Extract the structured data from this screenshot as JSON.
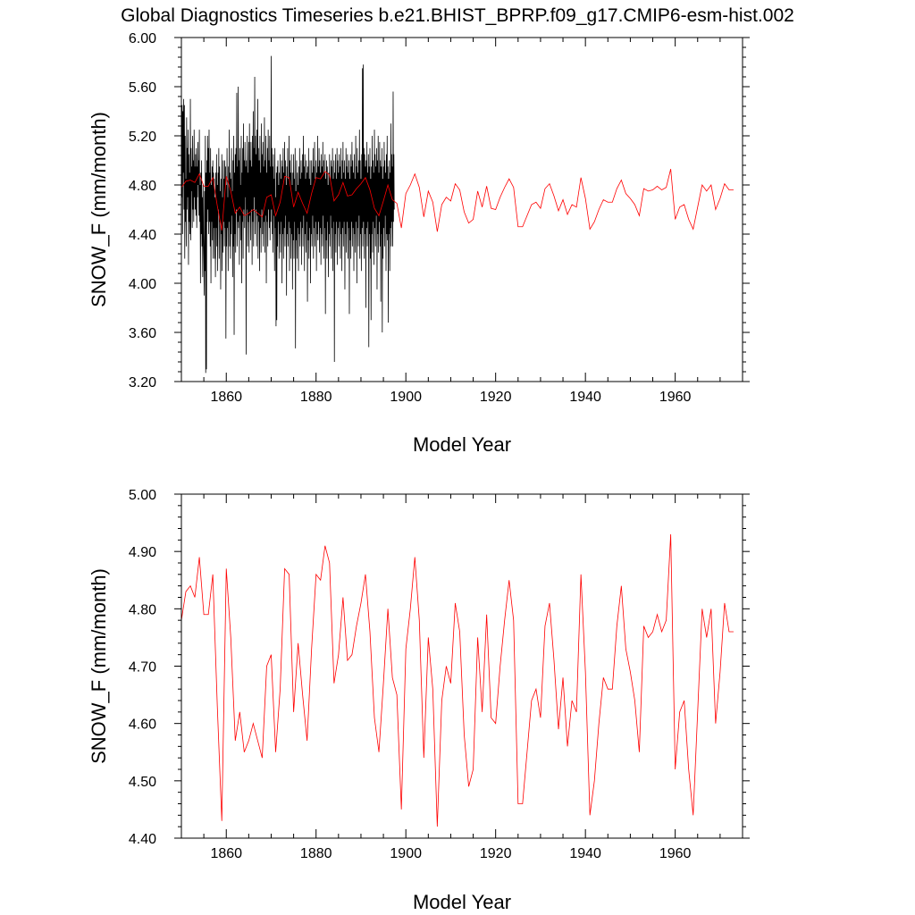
{
  "figure": {
    "title": "Global Diagnostics Timeseries b.e21.BHIST_BPRP.f09_g17.CMIP6-esm-hist.002"
  },
  "chart_data": [
    {
      "type": "line",
      "title": "Global Diagnostics Timeseries b.e21.BHIST_BPRP.f09_g17.CMIP6-esm-hist.002",
      "xlabel": "Model Year",
      "ylabel": "SNOW_F (mm/month)",
      "xlim": [
        1850,
        1975
      ],
      "ylim": [
        3.2,
        6.0
      ],
      "x_ticks": [
        1860,
        1880,
        1900,
        1920,
        1940,
        1960
      ],
      "x_tick_labels": [
        "1860",
        "1880",
        "1900",
        "1920",
        "1940",
        "1960"
      ],
      "y_ticks": [
        3.2,
        3.6,
        4.0,
        4.4,
        4.8,
        5.2,
        5.6,
        6.0
      ],
      "y_tick_labels": [
        "3.20",
        "3.60",
        "4.00",
        "4.40",
        "4.80",
        "5.20",
        "5.60",
        "6.00"
      ],
      "grid": false,
      "legend": "none",
      "series": [
        {
          "color": "#000000",
          "x_start": 1850,
          "x_step": 0.0833333,
          "values": [
            5.3,
            4.7,
            5.45,
            4.4,
            5.4,
            4.9,
            5.5,
            4.6,
            5.45,
            4.2,
            5.2,
            4.5,
            4.85,
            4.3,
            5.35,
            4.6,
            5.1,
            4.7,
            5.25,
            4.15,
            5.05,
            4.5,
            4.9,
            4.4,
            5.5,
            4.35,
            5.1,
            4.75,
            4.95,
            4.45,
            5.2,
            4.6,
            5.0,
            4.5,
            5.25,
            4.7,
            4.95,
            4.6,
            5.05,
            4.55,
            5.1,
            4.45,
            4.95,
            4.7,
            5.15,
            4.8,
            5.0,
            4.55,
            5.25,
            4.5,
            4.8,
            4.0,
            4.9,
            4.4,
            5.0,
            4.3,
            4.7,
            4.05,
            4.8,
            4.4,
            4.2,
            3.9,
            4.75,
            4.1,
            5.2,
            3.27,
            4.9,
            3.3,
            5.0,
            4.5,
            5.2,
            4.6,
            5.1,
            4.4,
            5.25,
            4.5,
            4.9,
            4.3,
            5.1,
            4.0,
            4.8,
            4.5,
            4.95,
            4.35,
            5.0,
            4.2,
            4.9,
            4.45,
            4.85,
            4.2,
            4.7,
            4.05,
            4.9,
            4.45,
            5.05,
            4.3,
            4.8,
            4.1,
            4.9,
            4.6,
            5.1,
            4.2,
            4.95,
            4.5,
            4.75,
            3.95,
            4.85,
            4.4,
            5.05,
            4.1,
            4.7,
            4.25,
            5.0,
            4.5,
            4.85,
            4.3,
            5.0,
            4.45,
            4.95,
            3.55,
            4.8,
            4.3,
            5.1,
            4.45,
            4.7,
            4.1,
            4.95,
            4.5,
            5.25,
            4.3,
            4.9,
            4.2,
            4.85,
            4.4,
            5.1,
            4.55,
            4.75,
            4.05,
            5.0,
            4.3,
            5.2,
            3.58,
            4.9,
            4.4,
            5.05,
            4.25,
            5.1,
            4.6,
            5.55,
            4.3,
            4.95,
            4.5,
            5.6,
            4.45,
            5.0,
            4.15,
            5.1,
            4.55,
            4.8,
            4.35,
            5.2,
            4.0,
            4.9,
            4.5,
            5.1,
            4.2,
            5.3,
            4.6,
            5.0,
            4.45,
            5.15,
            4.7,
            4.95,
            3.42,
            5.0,
            4.6,
            5.2,
            4.3,
            4.9,
            4.5,
            5.15,
            4.25,
            5.3,
            4.55,
            5.0,
            4.35,
            5.15,
            4.6,
            4.95,
            4.15,
            5.2,
            4.5,
            5.4,
            4.3,
            5.1,
            4.7,
            5.68,
            4.4,
            5.2,
            4.6,
            5.05,
            4.3,
            5.25,
            4.55,
            5.5,
            4.2,
            5.1,
            4.5,
            5.0,
            4.1,
            5.2,
            4.45,
            4.9,
            4.25,
            5.3,
            4.6,
            5.05,
            4.4,
            5.15,
            4.3,
            4.95,
            4.5,
            5.35,
            4.25,
            5.0,
            4.55,
            5.2,
            4.0,
            4.9,
            4.5,
            5.1,
            4.3,
            5.25,
            4.6,
            5.0,
            4.45,
            5.2,
            4.35,
            4.95,
            4.5,
            5.85,
            4.6,
            5.1,
            4.4,
            4.95,
            4.25,
            5.05,
            4.55,
            4.85,
            4.1,
            5.1,
            4.45,
            4.7,
            3.65,
            4.9,
            3.7,
            4.95,
            4.3,
            5.0,
            4.5,
            4.8,
            4.2,
            4.9,
            4.4,
            5.05,
            4.25,
            4.85,
            4.5,
            5.0,
            4.0,
            4.95,
            4.4,
            5.1,
            4.2,
            4.9,
            4.45,
            5.15,
            4.3,
            5.0,
            4.55,
            4.8,
            3.9,
            4.95,
            4.4,
            5.1,
            4.3,
            4.85,
            4.5,
            5.2,
            4.1,
            5.0,
            4.45,
            4.9,
            4.2,
            5.05,
            4.4,
            4.8,
            3.95,
            4.9,
            4.35,
            5.05,
            4.2,
            4.85,
            4.5,
            5.1,
            3.47,
            4.75,
            4.35,
            5.0,
            4.2,
            4.9,
            4.45,
            4.8,
            4.1,
            4.95,
            4.4,
            5.1,
            4.3,
            4.85,
            4.5,
            5.0,
            4.15,
            4.9,
            4.45,
            5.05,
            4.3,
            5.2,
            4.55,
            4.95,
            4.1,
            5.05,
            4.4,
            4.85,
            4.25,
            5.0,
            4.5,
            4.9,
            3.85,
            4.95,
            4.35,
            5.1,
            4.2,
            4.85,
            4.45,
            5.0,
            4.0,
            4.8,
            4.4,
            5.0,
            4.3,
            4.9,
            4.55,
            5.1,
            4.2,
            4.95,
            4.45,
            5.15,
            4.3,
            4.85,
            4.5,
            5.0,
            4.1,
            4.9,
            4.4,
            5.2,
            4.35,
            4.95,
            4.5,
            5.1,
            4.25,
            5.0,
            4.45,
            4.9,
            4.15,
            5.05,
            4.4,
            4.95,
            4.3,
            5.15,
            4.55,
            5.0,
            4.2,
            4.9,
            4.45,
            5.05,
            3.75,
            4.85,
            4.35,
            5.0,
            4.2,
            4.95,
            4.5,
            4.8,
            4.05,
            4.9,
            4.4,
            5.05,
            4.3,
            4.85,
            4.55,
            5.0,
            4.2,
            4.95,
            4.45,
            5.1,
            4.1,
            4.85,
            4.5,
            5.0,
            3.36,
            4.9,
            4.4,
            5.05,
            4.25,
            4.85,
            4.5,
            5.1,
            4.15,
            5.0,
            4.45,
            4.9,
            4.3,
            5.05,
            4.5,
            4.95,
            4.2,
            5.1,
            4.4,
            4.85,
            4.1,
            5.0,
            4.45,
            5.15,
            4.3,
            4.9,
            4.5,
            5.0,
            3.95,
            4.85,
            4.4,
            5.1,
            4.25,
            4.95,
            4.5,
            5.05,
            4.2,
            4.9,
            4.45,
            5.0,
            3.75,
            4.85,
            4.35,
            5.05,
            4.2,
            4.95,
            4.5,
            5.15,
            4.3,
            5.0,
            4.45,
            4.9,
            4.1,
            5.05,
            4.4,
            4.85,
            4.25,
            5.2,
            4.5,
            4.95,
            4.0,
            5.1,
            4.45,
            4.9,
            4.3,
            5.0,
            4.55,
            5.25,
            4.2,
            5.0,
            4.4,
            4.85,
            4.1,
            5.05,
            4.45,
            5.75,
            4.3,
            5.78,
            4.5,
            5.1,
            4.2,
            5.05,
            4.4,
            4.95,
            3.8,
            5.0,
            4.45,
            5.15,
            4.3,
            4.9,
            4.5,
            5.05,
            3.48,
            4.95,
            4.4,
            5.1,
            4.2,
            4.85,
            3.7,
            4.95,
            4.4,
            5.2,
            4.25,
            5.0,
            4.5,
            4.9,
            4.15,
            5.25,
            4.45,
            5.05,
            4.3,
            4.95,
            4.55,
            5.1,
            3.95,
            5.0,
            4.4,
            5.2,
            4.25,
            4.9,
            4.5,
            5.15,
            4.3,
            5.0,
            3.85,
            4.95,
            4.4,
            5.1,
            3.6,
            4.85,
            4.2,
            4.95,
            4.45,
            5.15,
            4.3,
            5.0,
            4.55,
            4.9,
            4.1,
            5.05,
            4.4,
            5.2,
            4.35,
            4.95,
            3.68,
            4.85,
            4.4,
            5.0,
            4.1,
            4.9,
            4.45,
            5.3,
            4.3,
            5.05,
            4.5,
            4.95,
            4.3,
            5.56,
            4.5,
            5.05,
            4.6
          ]
        },
        {
          "color": "#ff0000",
          "x_start": 1850,
          "x_step": 1,
          "values": [
            4.78,
            4.83,
            4.84,
            4.82,
            4.89,
            4.79,
            4.79,
            4.86,
            4.63,
            4.43,
            4.87,
            4.75,
            4.57,
            4.62,
            4.55,
            4.57,
            4.6,
            4.57,
            4.54,
            4.7,
            4.72,
            4.55,
            4.66,
            4.87,
            4.86,
            4.62,
            4.74,
            4.65,
            4.57,
            4.73,
            4.86,
            4.85,
            4.91,
            4.88,
            4.67,
            4.72,
            4.82,
            4.71,
            4.72,
            4.77,
            4.81,
            4.86,
            4.76,
            4.61,
            4.55,
            4.67,
            4.8,
            4.68,
            4.65,
            4.45,
            4.73,
            4.8,
            4.89,
            4.78,
            4.54,
            4.75,
            4.66,
            4.42,
            4.64,
            4.7,
            4.67,
            4.81,
            4.76,
            4.58,
            4.49,
            4.52,
            4.75,
            4.62,
            4.79,
            4.61,
            4.6,
            4.7,
            4.78,
            4.85,
            4.78,
            4.46,
            4.46,
            4.55,
            4.64,
            4.66,
            4.61,
            4.77,
            4.81,
            4.71,
            4.59,
            4.68,
            4.56,
            4.64,
            4.62,
            4.86,
            4.69,
            4.44,
            4.5,
            4.6,
            4.68,
            4.66,
            4.66,
            4.77,
            4.84,
            4.73,
            4.69,
            4.64,
            4.55,
            4.77,
            4.75,
            4.76,
            4.79,
            4.76,
            4.78,
            4.93,
            4.52,
            4.62,
            4.64,
            4.52,
            4.44,
            4.62,
            4.8,
            4.75,
            4.8,
            4.6,
            4.69,
            4.81,
            4.76,
            4.76
          ]
        }
      ]
    },
    {
      "type": "line",
      "title": "",
      "xlabel": "Model Year",
      "ylabel": "SNOW_F (mm/month)",
      "xlim": [
        1850,
        1975
      ],
      "ylim": [
        4.4,
        5.0
      ],
      "x_ticks": [
        1860,
        1880,
        1900,
        1920,
        1940,
        1960
      ],
      "x_tick_labels": [
        "1860",
        "1880",
        "1900",
        "1920",
        "1940",
        "1960"
      ],
      "y_ticks": [
        4.4,
        4.5,
        4.6,
        4.7,
        4.8,
        4.9,
        5.0
      ],
      "y_tick_labels": [
        "4.40",
        "4.50",
        "4.60",
        "4.70",
        "4.80",
        "4.90",
        "5.00"
      ],
      "grid": false,
      "legend": "none",
      "series": [
        {
          "color": "#ff0000",
          "x_start": 1850,
          "x_step": 1,
          "values": [
            4.78,
            4.83,
            4.84,
            4.82,
            4.89,
            4.79,
            4.79,
            4.86,
            4.63,
            4.43,
            4.87,
            4.75,
            4.57,
            4.62,
            4.55,
            4.57,
            4.6,
            4.57,
            4.54,
            4.7,
            4.72,
            4.55,
            4.66,
            4.87,
            4.86,
            4.62,
            4.74,
            4.65,
            4.57,
            4.73,
            4.86,
            4.85,
            4.91,
            4.88,
            4.67,
            4.72,
            4.82,
            4.71,
            4.72,
            4.77,
            4.81,
            4.86,
            4.76,
            4.61,
            4.55,
            4.67,
            4.8,
            4.68,
            4.65,
            4.45,
            4.73,
            4.8,
            4.89,
            4.78,
            4.54,
            4.75,
            4.66,
            4.42,
            4.64,
            4.7,
            4.67,
            4.81,
            4.76,
            4.58,
            4.49,
            4.52,
            4.75,
            4.62,
            4.79,
            4.61,
            4.6,
            4.7,
            4.78,
            4.85,
            4.78,
            4.46,
            4.46,
            4.55,
            4.64,
            4.66,
            4.61,
            4.77,
            4.81,
            4.71,
            4.59,
            4.68,
            4.56,
            4.64,
            4.62,
            4.86,
            4.69,
            4.44,
            4.5,
            4.6,
            4.68,
            4.66,
            4.66,
            4.77,
            4.84,
            4.73,
            4.69,
            4.64,
            4.55,
            4.77,
            4.75,
            4.76,
            4.79,
            4.76,
            4.78,
            4.93,
            4.52,
            4.62,
            4.64,
            4.52,
            4.44,
            4.62,
            4.8,
            4.75,
            4.8,
            4.6,
            4.69,
            4.81,
            4.76,
            4.76
          ]
        }
      ]
    }
  ]
}
